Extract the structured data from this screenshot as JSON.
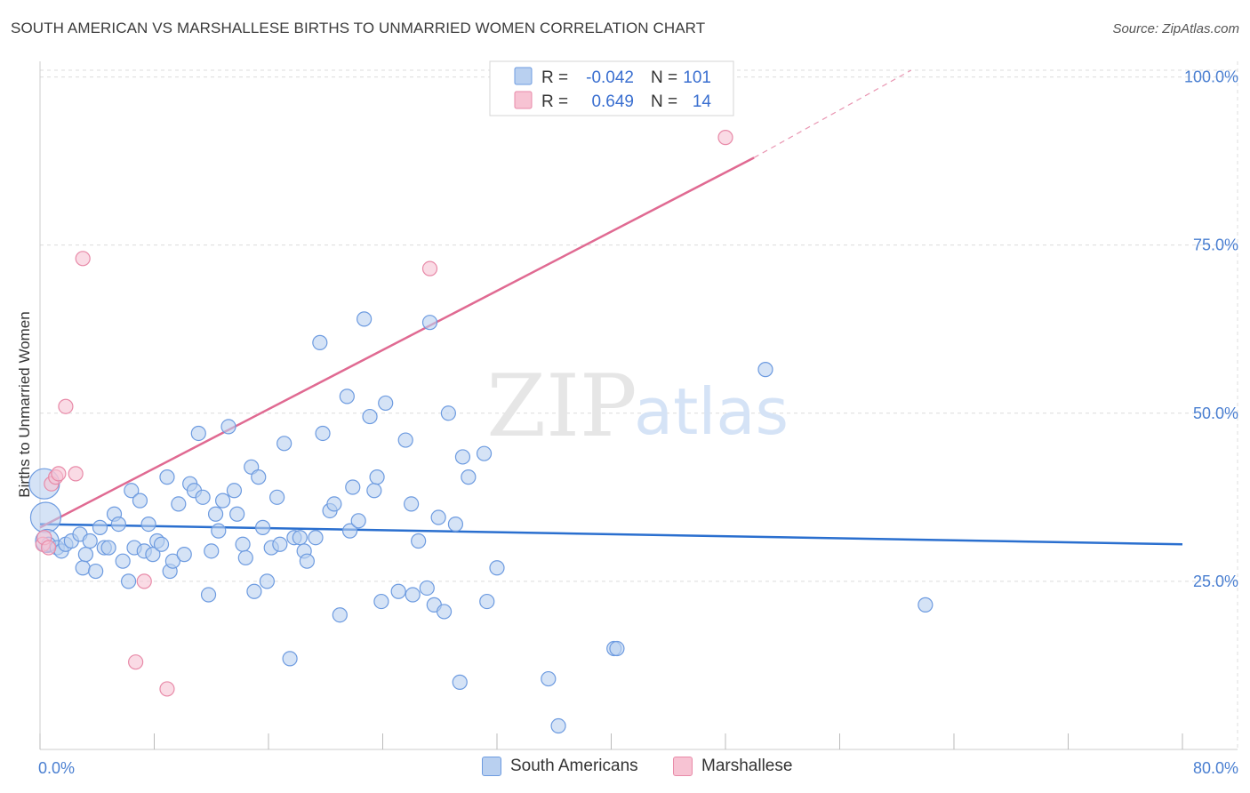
{
  "title": "SOUTH AMERICAN VS MARSHALLESE BIRTHS TO UNMARRIED WOMEN CORRELATION CHART",
  "source": "Source: ZipAtlas.com",
  "watermark": {
    "zip": "ZIP",
    "atlas": "atlas"
  },
  "colors": {
    "blue": "#6d9be0",
    "blue_fill": "#b9d0f0",
    "blue_line": "#2a6fcf",
    "pink": "#e88aa8",
    "pink_fill": "#f7c3d3",
    "pink_line": "#e06a92",
    "tick": "#4a7fd1",
    "grid": "#dcdcdc"
  },
  "legend": {
    "r_label": "R =",
    "n_label": "N =",
    "rows": [
      {
        "series": "South Americans",
        "r": "-0.042",
        "n": "101"
      },
      {
        "series": "Marshallese",
        "r": "0.649",
        "n": "14"
      }
    ]
  },
  "chart_data": {
    "type": "scatter",
    "title": "SOUTH AMERICAN VS MARSHALLESE BIRTHS TO UNMARRIED WOMEN CORRELATION CHART",
    "xlabel": "",
    "ylabel": "Births to Unmarried Women",
    "xlim": [
      0,
      80
    ],
    "ylim": [
      0,
      101
    ],
    "x_tick_labels": [
      "0.0%",
      "80.0%"
    ],
    "y_ticks": [
      25,
      50,
      75,
      100
    ],
    "y_tick_labels": [
      "25.0%",
      "50.0%",
      "75.0%",
      "100.0%"
    ],
    "grid": true,
    "series": [
      {
        "name": "South Americans",
        "points": [
          [
            0.3,
            39.5
          ],
          [
            0.4,
            34.5
          ],
          [
            0.5,
            31
          ],
          [
            0.6,
            30.5
          ],
          [
            1.2,
            30
          ],
          [
            1.5,
            29.5
          ],
          [
            1.8,
            30.5
          ],
          [
            2.2,
            31
          ],
          [
            2.8,
            32
          ],
          [
            3.0,
            27
          ],
          [
            3.2,
            29
          ],
          [
            3.5,
            31
          ],
          [
            3.9,
            26.5
          ],
          [
            4.2,
            33
          ],
          [
            4.5,
            30
          ],
          [
            4.8,
            30
          ],
          [
            5.2,
            35
          ],
          [
            5.5,
            33.5
          ],
          [
            5.8,
            28
          ],
          [
            6.2,
            25
          ],
          [
            6.4,
            38.5
          ],
          [
            6.6,
            30
          ],
          [
            7.0,
            37
          ],
          [
            7.3,
            29.5
          ],
          [
            7.6,
            33.5
          ],
          [
            7.9,
            29
          ],
          [
            8.2,
            31
          ],
          [
            8.5,
            30.5
          ],
          [
            8.9,
            40.5
          ],
          [
            9.1,
            26.5
          ],
          [
            9.3,
            28
          ],
          [
            9.7,
            36.5
          ],
          [
            10.1,
            29
          ],
          [
            10.5,
            39.5
          ],
          [
            10.8,
            38.5
          ],
          [
            11.1,
            47
          ],
          [
            11.4,
            37.5
          ],
          [
            11.8,
            23
          ],
          [
            12.0,
            29.5
          ],
          [
            12.3,
            35
          ],
          [
            12.5,
            32.5
          ],
          [
            12.8,
            37
          ],
          [
            13.2,
            48
          ],
          [
            13.6,
            38.5
          ],
          [
            13.8,
            35
          ],
          [
            14.2,
            30.5
          ],
          [
            14.4,
            28.5
          ],
          [
            14.8,
            42
          ],
          [
            15.0,
            23.5
          ],
          [
            15.3,
            40.5
          ],
          [
            15.6,
            33
          ],
          [
            15.9,
            25
          ],
          [
            16.2,
            30
          ],
          [
            16.6,
            37.5
          ],
          [
            16.8,
            30.5
          ],
          [
            17.1,
            45.5
          ],
          [
            17.5,
            13.5
          ],
          [
            17.8,
            31.5
          ],
          [
            18.2,
            31.5
          ],
          [
            18.5,
            29.5
          ],
          [
            18.7,
            28
          ],
          [
            19.3,
            31.5
          ],
          [
            19.6,
            60.5
          ],
          [
            19.8,
            47
          ],
          [
            20.3,
            35.5
          ],
          [
            20.6,
            36.5
          ],
          [
            21.0,
            20
          ],
          [
            21.5,
            52.5
          ],
          [
            21.7,
            32.5
          ],
          [
            21.9,
            39
          ],
          [
            22.3,
            34
          ],
          [
            22.7,
            64
          ],
          [
            23.1,
            49.5
          ],
          [
            23.4,
            38.5
          ],
          [
            23.6,
            40.5
          ],
          [
            23.9,
            22
          ],
          [
            24.2,
            51.5
          ],
          [
            25.1,
            23.5
          ],
          [
            25.6,
            46
          ],
          [
            26.0,
            36.5
          ],
          [
            26.1,
            23
          ],
          [
            26.5,
            31
          ],
          [
            27.1,
            24
          ],
          [
            27.3,
            63.5
          ],
          [
            27.6,
            21.5
          ],
          [
            27.9,
            34.5
          ],
          [
            28.3,
            20.5
          ],
          [
            28.6,
            50
          ],
          [
            29.1,
            33.5
          ],
          [
            29.4,
            10
          ],
          [
            29.6,
            43.5
          ],
          [
            30.0,
            40.5
          ],
          [
            31.1,
            44
          ],
          [
            31.3,
            22
          ],
          [
            32.0,
            27
          ],
          [
            35.6,
            10.5
          ],
          [
            36.3,
            3.5
          ],
          [
            40.2,
            15
          ],
          [
            40.4,
            15
          ],
          [
            50.8,
            56.5
          ],
          [
            62.0,
            21.5
          ]
        ]
      },
      {
        "name": "Marshallese",
        "points": [
          [
            0.2,
            30.5
          ],
          [
            0.3,
            31.5
          ],
          [
            0.8,
            39.5
          ],
          [
            1.1,
            40.5
          ],
          [
            1.3,
            41
          ],
          [
            1.8,
            51
          ],
          [
            2.5,
            41
          ],
          [
            3.0,
            73
          ],
          [
            6.7,
            13
          ],
          [
            7.3,
            25
          ],
          [
            8.9,
            9
          ],
          [
            27.3,
            71.5
          ],
          [
            48.0,
            91
          ],
          [
            0.6,
            30
          ]
        ]
      }
    ],
    "trendlines": [
      {
        "series": "South Americans",
        "x": [
          0,
          80
        ],
        "y": [
          33.5,
          30.5
        ]
      },
      {
        "series": "Marshallese",
        "x": [
          0,
          50
        ],
        "y": [
          33,
          88
        ]
      },
      {
        "series": "Marshallese (extrapolated)",
        "x": [
          50,
          61
        ],
        "y": [
          88,
          101
        ]
      }
    ]
  },
  "bottom_legend": [
    {
      "label": "South Americans"
    },
    {
      "label": "Marshallese"
    }
  ]
}
